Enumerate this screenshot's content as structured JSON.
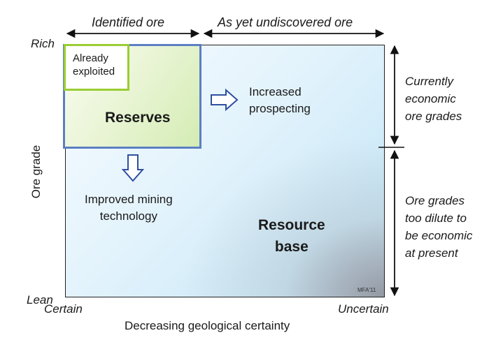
{
  "top_labels": {
    "identified": "Identified ore",
    "undiscovered": "As yet undiscovered ore"
  },
  "y_axis": {
    "rich": "Rich",
    "lean": "Lean",
    "title": "Ore grade"
  },
  "x_axis": {
    "certain": "Certain",
    "uncertain": "Uncertain",
    "title": "Decreasing geological certainty"
  },
  "boxes": {
    "already_exploited_line1": "Already",
    "already_exploited_line2": "exploited",
    "reserves": "Reserves",
    "resource_base_line1": "Resource",
    "resource_base_line2": "base"
  },
  "arrows": {
    "prospecting_line1": "Increased",
    "prospecting_line2": "prospecting",
    "mining_line1": "Improved mining",
    "mining_line2": "technology"
  },
  "right_labels": {
    "economic": [
      "Currently",
      "economic",
      "ore grades"
    ],
    "dilute": [
      "Ore grades",
      "too dilute to",
      "be economic",
      "at present"
    ]
  },
  "credit": "MFA'11",
  "colors": {
    "reserves_border": "#5b7fc4",
    "exploited_border": "#9acd32",
    "arrow_outline": "#2f4f9e"
  }
}
